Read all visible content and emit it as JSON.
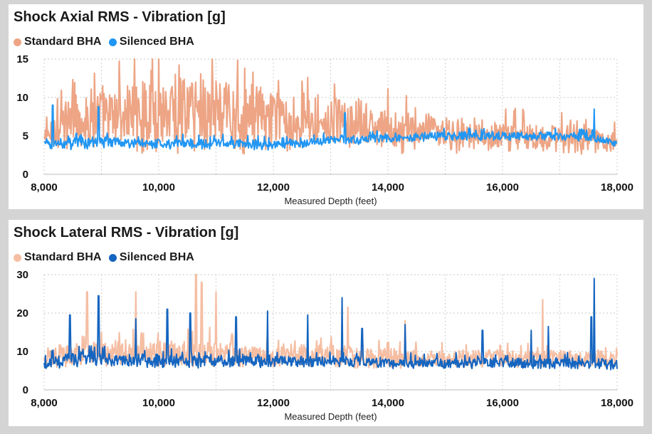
{
  "chart_data": [
    {
      "type": "line",
      "title": "Shock Axial RMS - Vibration [g]",
      "xlabel": "Measured Depth (feet)",
      "ylabel": "",
      "xlim": [
        8000,
        18000
      ],
      "ylim": [
        0,
        15
      ],
      "xticks": [
        8000,
        10000,
        12000,
        14000,
        16000,
        18000
      ],
      "xtick_labels": [
        "8,000",
        "10,000",
        "12,000",
        "14,000",
        "16,000",
        "18,000"
      ],
      "yticks": [
        0,
        5,
        10,
        15
      ],
      "ytick_labels": [
        "0",
        "5",
        "10",
        "15"
      ],
      "grid": "dotted",
      "legend_position": "top-left",
      "series": [
        {
          "name": "Standard BHA",
          "color": "#eda585",
          "x": [
            8000,
            8250,
            8500,
            8750,
            9000,
            9250,
            9500,
            9750,
            10000,
            10250,
            10500,
            10750,
            11000,
            11250,
            11500,
            11750,
            12000,
            12250,
            12500,
            12750,
            13000,
            13250,
            13500,
            13750,
            14000,
            14250,
            14500,
            14750,
            15000,
            15250,
            15500,
            15750,
            16000,
            16250,
            16500,
            16750,
            17000,
            17250,
            17500,
            17750,
            18000
          ],
          "y_mid": [
            4.5,
            6.0,
            7.0,
            7.0,
            7.5,
            7.5,
            8.0,
            8.0,
            8.5,
            8.5,
            8.5,
            8.5,
            8.0,
            8.0,
            7.5,
            7.5,
            7.0,
            7.0,
            7.0,
            7.0,
            7.0,
            6.5,
            6.5,
            6.0,
            6.0,
            5.5,
            5.5,
            5.5,
            5.0,
            5.0,
            5.0,
            5.0,
            5.0,
            5.0,
            5.0,
            5.0,
            4.5,
            4.5,
            4.5,
            4.5,
            4.5
          ],
          "y_amp": [
            1.5,
            3.0,
            3.5,
            4.0,
            4.5,
            4.5,
            5.0,
            5.5,
            6.0,
            6.0,
            6.0,
            6.0,
            5.5,
            5.0,
            5.0,
            4.5,
            4.0,
            4.0,
            4.0,
            4.0,
            3.5,
            3.5,
            3.5,
            3.0,
            3.0,
            3.0,
            2.5,
            2.5,
            2.5,
            2.5,
            2.5,
            2.0,
            2.0,
            2.0,
            2.0,
            2.0,
            2.0,
            2.0,
            2.0,
            1.5,
            1.5
          ]
        },
        {
          "name": "Silenced BHA",
          "color": "#2196f3",
          "x": [
            8000,
            8250,
            8500,
            8750,
            9000,
            9250,
            9500,
            9750,
            10000,
            10250,
            10500,
            10750,
            11000,
            11250,
            11500,
            11750,
            12000,
            12250,
            12500,
            12750,
            13000,
            13250,
            13500,
            13750,
            14000,
            14250,
            14500,
            14750,
            15000,
            15250,
            15500,
            15750,
            16000,
            16250,
            16500,
            16750,
            17000,
            17250,
            17500,
            17750,
            18000
          ],
          "y_mid": [
            4.0,
            4.0,
            4.0,
            4.0,
            4.2,
            4.2,
            4.0,
            4.0,
            4.0,
            4.0,
            4.0,
            4.0,
            4.0,
            4.0,
            4.0,
            3.8,
            3.8,
            4.0,
            4.0,
            4.2,
            4.5,
            4.5,
            4.5,
            4.6,
            4.8,
            4.8,
            4.8,
            5.0,
            5.0,
            5.0,
            5.0,
            5.0,
            5.0,
            5.0,
            5.0,
            5.0,
            5.0,
            5.0,
            4.8,
            4.5,
            4.0
          ],
          "y_amp": [
            0.6,
            0.8,
            0.8,
            0.8,
            0.8,
            0.8,
            0.7,
            0.7,
            0.7,
            0.7,
            0.7,
            0.7,
            0.7,
            0.7,
            0.7,
            0.7,
            0.6,
            0.6,
            0.6,
            0.6,
            0.6,
            0.6,
            0.6,
            0.6,
            0.6,
            0.6,
            0.6,
            0.6,
            0.6,
            0.6,
            0.6,
            0.6,
            0.6,
            0.6,
            0.6,
            0.6,
            0.6,
            0.6,
            0.6,
            0.6,
            0.6
          ],
          "peaks": [
            [
              8150,
              9.0
            ],
            [
              8950,
              8.8
            ],
            [
              13250,
              8.0
            ],
            [
              17600,
              8.5
            ]
          ]
        }
      ]
    },
    {
      "type": "line",
      "title": "Shock Lateral RMS - Vibration [g]",
      "xlabel": "Measured Depth (feet)",
      "ylabel": "",
      "xlim": [
        8000,
        18000
      ],
      "ylim": [
        0,
        30
      ],
      "xticks": [
        8000,
        10000,
        12000,
        14000,
        16000,
        18000
      ],
      "xtick_labels": [
        "8,000",
        "10,000",
        "12,000",
        "14,000",
        "16,000",
        "18,000"
      ],
      "yticks": [
        0,
        10,
        20,
        30
      ],
      "ytick_labels": [
        "0",
        "10",
        "20",
        "30"
      ],
      "grid": "dotted",
      "legend_position": "top-left",
      "series": [
        {
          "name": "Standard BHA",
          "color": "#f5bea3",
          "x": [
            8000,
            8250,
            8500,
            8750,
            9000,
            9250,
            9500,
            9750,
            10000,
            10250,
            10500,
            10750,
            11000,
            11250,
            11500,
            11750,
            12000,
            12250,
            12500,
            12750,
            13000,
            13250,
            13500,
            13750,
            14000,
            14250,
            14500,
            14750,
            15000,
            15250,
            15500,
            15750,
            16000,
            16250,
            16500,
            16750,
            17000,
            17250,
            17500,
            17750,
            18000
          ],
          "y_mid": [
            7.0,
            9.0,
            9.5,
            9.5,
            9.5,
            9.5,
            9.5,
            9.5,
            9.5,
            9.5,
            10.0,
            10.0,
            9.5,
            9.5,
            9.0,
            9.0,
            9.0,
            9.0,
            9.0,
            9.0,
            9.0,
            9.0,
            8.5,
            8.5,
            8.5,
            8.5,
            8.0,
            8.0,
            8.0,
            8.0,
            8.0,
            8.0,
            8.0,
            8.0,
            8.0,
            8.0,
            8.0,
            8.0,
            8.0,
            8.0,
            7.5
          ],
          "y_amp": [
            2.0,
            3.0,
            3.5,
            3.5,
            3.5,
            3.5,
            3.5,
            3.5,
            3.5,
            3.5,
            4.0,
            4.0,
            3.5,
            3.5,
            3.0,
            3.0,
            3.0,
            3.0,
            3.0,
            3.0,
            3.0,
            3.0,
            3.0,
            3.0,
            3.0,
            3.0,
            2.5,
            2.5,
            2.5,
            2.5,
            2.5,
            2.5,
            2.5,
            2.5,
            2.5,
            2.5,
            2.5,
            2.5,
            2.5,
            2.5,
            2.0
          ],
          "peaks": [
            [
              8750,
              25.5
            ],
            [
              9600,
              25.5
            ],
            [
              10650,
              30.0
            ],
            [
              10750,
              28.0
            ],
            [
              11000,
              25.5
            ],
            [
              13300,
              21.5
            ],
            [
              14300,
              18.0
            ],
            [
              16700,
              23.5
            ]
          ]
        },
        {
          "name": "Silenced BHA",
          "color": "#1565c0",
          "x": [
            8000,
            8250,
            8500,
            8750,
            9000,
            9250,
            9500,
            9750,
            10000,
            10250,
            10500,
            10750,
            11000,
            11250,
            11500,
            11750,
            12000,
            12250,
            12500,
            12750,
            13000,
            13250,
            13500,
            13750,
            14000,
            14250,
            14500,
            14750,
            15000,
            15250,
            15500,
            15750,
            16000,
            16250,
            16500,
            16750,
            17000,
            17250,
            17500,
            17750,
            18000
          ],
          "y_mid": [
            6.5,
            7.5,
            8.0,
            8.0,
            8.0,
            8.0,
            7.5,
            7.5,
            7.5,
            7.5,
            7.5,
            7.5,
            7.5,
            7.5,
            7.5,
            7.5,
            7.5,
            7.5,
            7.5,
            7.5,
            7.5,
            7.5,
            7.5,
            7.0,
            7.0,
            7.0,
            7.0,
            7.0,
            7.0,
            7.0,
            7.0,
            7.0,
            7.0,
            7.0,
            7.0,
            7.0,
            7.0,
            7.0,
            7.0,
            7.0,
            6.5
          ],
          "y_amp": [
            1.5,
            2.0,
            2.0,
            2.0,
            2.0,
            2.0,
            1.8,
            1.8,
            1.8,
            1.8,
            1.8,
            1.8,
            1.8,
            1.8,
            1.8,
            1.8,
            1.5,
            1.5,
            1.5,
            1.5,
            1.5,
            1.5,
            1.5,
            1.5,
            1.5,
            1.5,
            1.5,
            1.5,
            1.5,
            1.5,
            1.5,
            1.5,
            1.5,
            1.5,
            1.5,
            1.5,
            1.5,
            1.5,
            1.5,
            1.5,
            1.5
          ],
          "peaks": [
            [
              8450,
              19.5
            ],
            [
              8950,
              24.5
            ],
            [
              9600,
              18.5
            ],
            [
              10150,
              21.0
            ],
            [
              10550,
              20.0
            ],
            [
              11350,
              19.0
            ],
            [
              11900,
              20.5
            ],
            [
              12600,
              19.5
            ],
            [
              13200,
              24.0
            ],
            [
              13550,
              16.0
            ],
            [
              14300,
              17.0
            ],
            [
              15650,
              15.5
            ],
            [
              16500,
              15.5
            ],
            [
              16800,
              16.5
            ],
            [
              17550,
              19.0
            ],
            [
              17600,
              29.0
            ]
          ]
        }
      ]
    }
  ]
}
